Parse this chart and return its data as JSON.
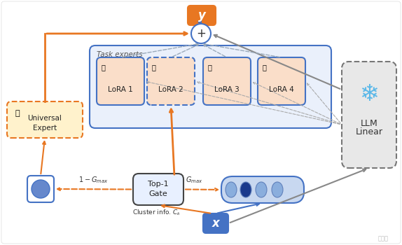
{
  "bg_color": "#ffffff",
  "orange": "#E87722",
  "blue_border": "#4472C4",
  "gray_border": "#888888",
  "lora_bg": "#FADEC9",
  "task_experts_bg": "#EAF0FB",
  "universal_bg": "#FFF2CC",
  "llm_bg": "#E8E8E8",
  "top1_bg": "#E8F0FF",
  "cluster_bg": "#C8D8F0",
  "y_box_color": "#E87722",
  "x_box_color": "#4472C4",
  "snowflake_color": "#5BB8E8",
  "loras": [
    "LoRA 1",
    "LoRA 2",
    "LoRA 3",
    "LoRA 4"
  ]
}
